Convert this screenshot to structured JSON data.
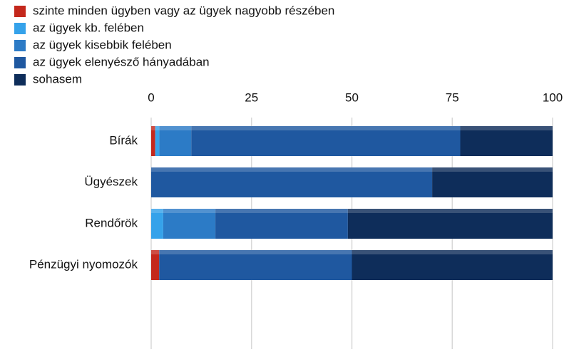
{
  "chart_data": {
    "type": "stacked_barh",
    "categories": [
      "Bírák",
      "Ügyészek",
      "Rendőrök",
      "Pénzügyi nyomozók"
    ],
    "series": [
      {
        "name": "szinte minden ügyben vagy az ügyek nagyobb részében",
        "color": "#c4281c",
        "values": [
          1,
          0,
          0,
          2
        ]
      },
      {
        "name": "az ügyek kb. felében",
        "color": "#35a2ea",
        "values": [
          1,
          0,
          3,
          0
        ]
      },
      {
        "name": "az ügyek kisebbik felében",
        "color": "#2c7bc6",
        "values": [
          8,
          0,
          13,
          0
        ]
      },
      {
        "name": "az ügyek elenyésző hányadában",
        "color": "#1f58a0",
        "values": [
          67,
          70,
          33,
          48
        ]
      },
      {
        "name": "sohasem",
        "color": "#0e2d5a",
        "values": [
          23,
          30,
          51,
          50
        ]
      }
    ],
    "xlim": [
      0,
      100
    ],
    "xticks": [
      0,
      25,
      50,
      75,
      100
    ],
    "grid": true,
    "legend": "top-left"
  }
}
